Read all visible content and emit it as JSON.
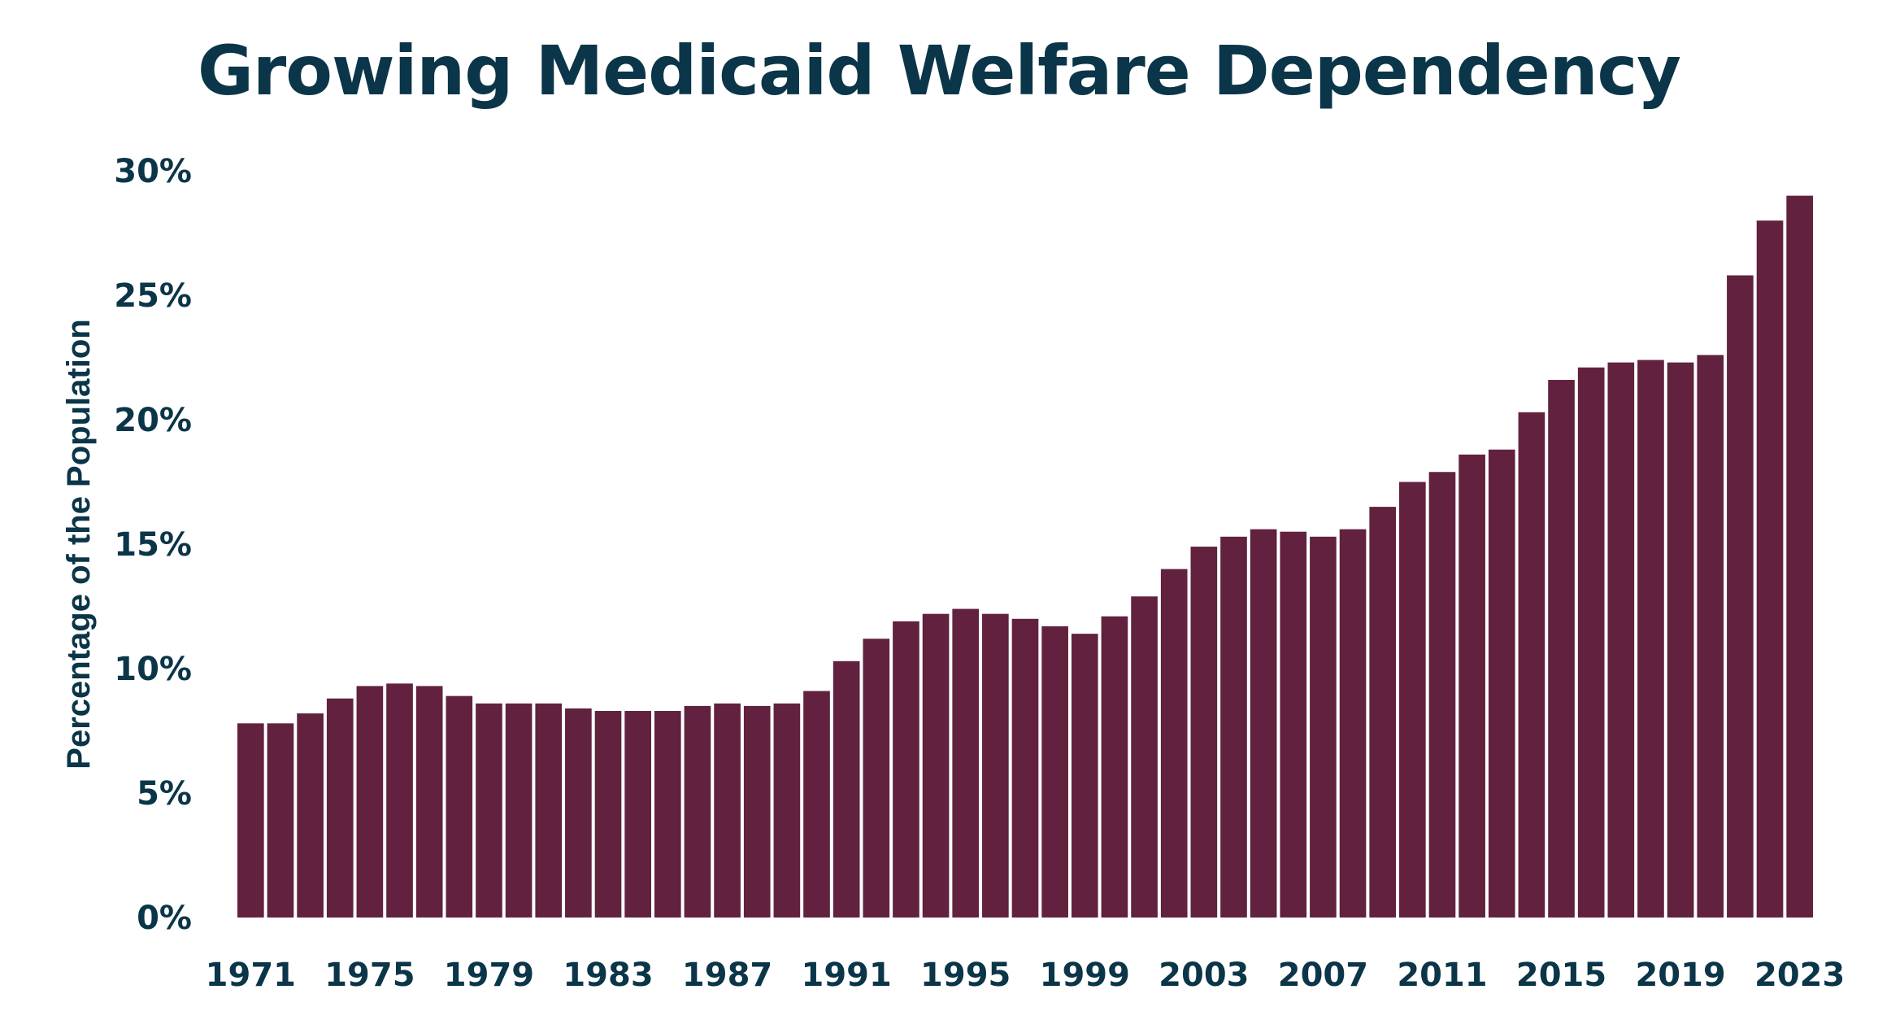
{
  "chart_data": {
    "type": "bar",
    "title": "Growing Medicaid Welfare Dependency",
    "ylabel": "Percentage of the Population",
    "xlabel": "",
    "ylim": [
      0,
      30
    ],
    "yticks": [
      "0%",
      "5%",
      "10%",
      "15%",
      "20%",
      "25%",
      "30%"
    ],
    "xtick_labels": [
      "1971",
      "1975",
      "1979",
      "1983",
      "1987",
      "1991",
      "1995",
      "1999",
      "2003",
      "2007",
      "2011",
      "2015",
      "2019",
      "2023"
    ],
    "grid": false,
    "bar_color": "#61213f",
    "text_color": "#0b3548",
    "categories": [
      1971,
      1972,
      1973,
      1974,
      1975,
      1976,
      1977,
      1978,
      1979,
      1980,
      1981,
      1982,
      1983,
      1984,
      1985,
      1986,
      1987,
      1988,
      1989,
      1990,
      1991,
      1992,
      1993,
      1994,
      1995,
      1996,
      1997,
      1998,
      1999,
      2000,
      2001,
      2002,
      2003,
      2004,
      2005,
      2006,
      2007,
      2008,
      2009,
      2010,
      2011,
      2012,
      2013,
      2014,
      2015,
      2016,
      2017,
      2018,
      2019,
      2020,
      2021,
      2022,
      2023
    ],
    "values": [
      7.8,
      7.8,
      8.2,
      8.8,
      9.3,
      9.4,
      9.3,
      8.9,
      8.6,
      8.6,
      8.6,
      8.4,
      8.3,
      8.3,
      8.3,
      8.5,
      8.6,
      8.5,
      8.6,
      9.1,
      10.3,
      11.2,
      11.9,
      12.2,
      12.4,
      12.2,
      12.0,
      11.7,
      11.4,
      12.1,
      12.9,
      14.0,
      14.9,
      15.3,
      15.6,
      15.5,
      15.3,
      15.6,
      16.5,
      17.5,
      17.9,
      18.6,
      18.8,
      20.3,
      21.6,
      22.1,
      22.3,
      22.4,
      22.3,
      22.6,
      25.8,
      28.0,
      29.0
    ]
  }
}
